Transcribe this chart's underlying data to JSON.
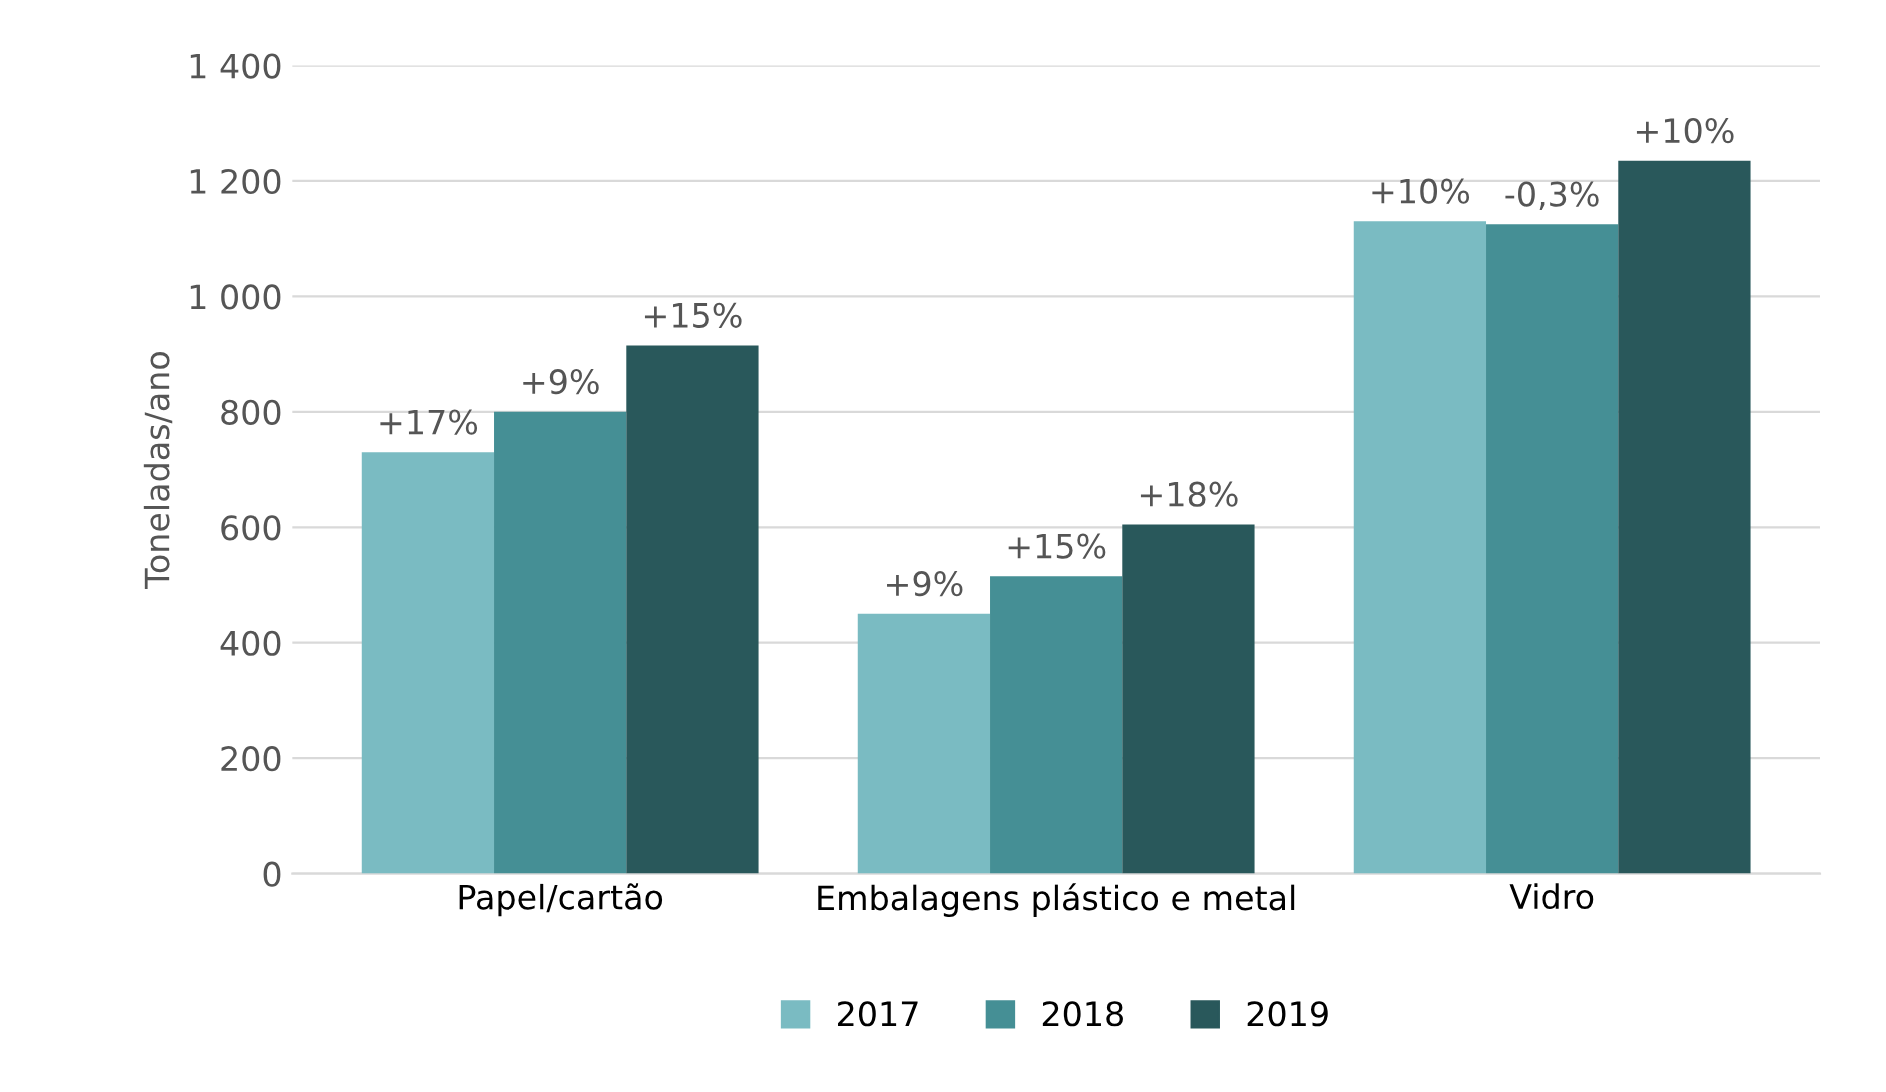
{
  "chart_data": {
    "type": "bar",
    "ylabel": "Toneladas/ano",
    "categories": [
      "Papel/cartão",
      "Embalagens plástico e metal",
      "Vidro"
    ],
    "series": [
      {
        "name": "2017",
        "color": "#7abbc2",
        "values": [
          730,
          450,
          1130
        ]
      },
      {
        "name": "2018",
        "color": "#458f95",
        "values": [
          800,
          515,
          1125
        ]
      },
      {
        "name": "2019",
        "color": "#29585b",
        "values": [
          915,
          605,
          1235
        ]
      }
    ],
    "annotations": [
      "+17%",
      "+9%",
      "+10%",
      "+9%",
      "+15%",
      "-0,3%",
      "+15%",
      "+18%",
      "+10%"
    ],
    "ylim": [
      0,
      1400
    ],
    "yticks": [
      0,
      200,
      400,
      600,
      800,
      {
        "value": 1000,
        "label": "1 000"
      },
      {
        "value": 1200,
        "label": "1 200"
      },
      {
        "value": 1400,
        "label": "1 400"
      }
    ],
    "grid": "y",
    "legend": "bottom"
  }
}
